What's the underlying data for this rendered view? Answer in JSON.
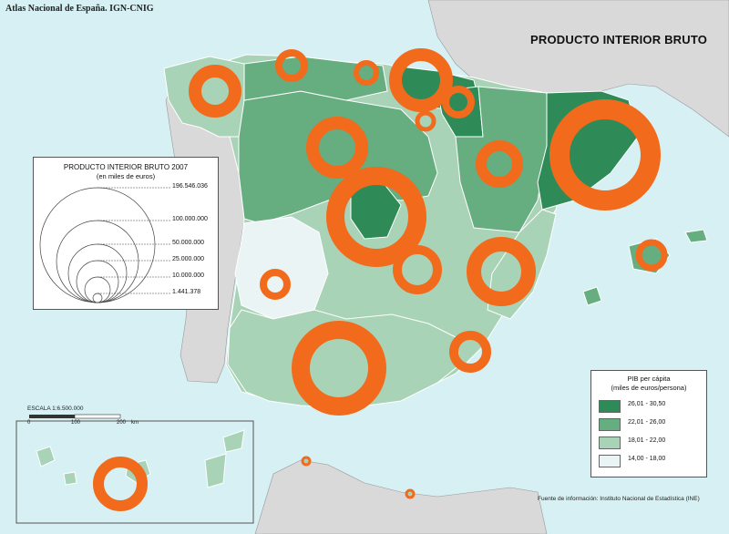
{
  "header": {
    "credit": "Atlas Nacional de España. IGN-CNIG",
    "title": "PRODUCTO INTERIOR BRUTO"
  },
  "circle_legend": {
    "title": "PRODUCTO INTERIOR BRUTO 2007",
    "subtitle": "(en miles de euros)",
    "values": [
      "196.546.036",
      "100.000.000",
      "50.000.000",
      "25.000.000",
      "10.000.000",
      "1.441.378"
    ]
  },
  "choropleth_legend": {
    "title_line1": "PIB per cápita",
    "title_line2": "(miles de euros/persona)",
    "classes": [
      {
        "label": "26,01 - 30,50",
        "color": "#2e8b57"
      },
      {
        "label": "22,01 - 26,00",
        "color": "#66ad7f"
      },
      {
        "label": "18,01 - 22,00",
        "color": "#a9d3b7"
      },
      {
        "label": "14,00 - 18,00",
        "color": "#eaf4f4"
      }
    ]
  },
  "scale": {
    "label": "ESCALA 1:6.500.000",
    "ticks": [
      "0",
      "100",
      "200"
    ],
    "unit": "km"
  },
  "source": "Fuente de información: Instituto Nacional de Estadística (INE)",
  "colors": {
    "sea": "#d6f0f3",
    "foreign_land": "#d9d9d9",
    "ring": "#f26a1b"
  }
}
